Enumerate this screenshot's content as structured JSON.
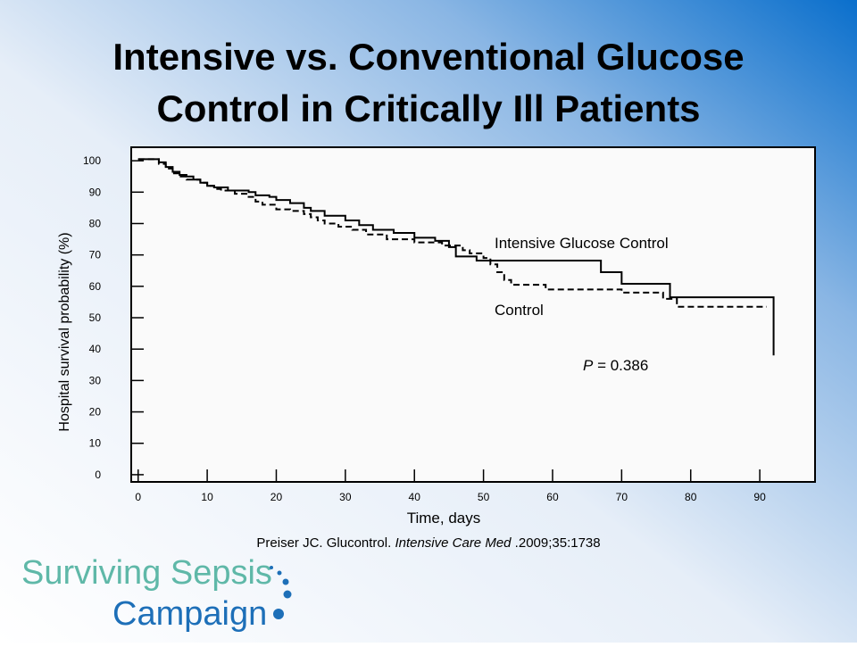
{
  "chart_data": {
    "type": "step",
    "title": [
      "Intensive vs. Conventional Glucose",
      "Control in Critically Ill Patients"
    ],
    "x_label": "Time, days",
    "y_label": "Hospital survival probability (%)",
    "xlim": [
      -1,
      98
    ],
    "ylim": [
      -2.3,
      104.3
    ],
    "xticks": [
      0,
      10,
      20,
      30,
      40,
      50,
      60,
      70,
      80,
      90
    ],
    "yticks": [
      0,
      10,
      20,
      30,
      40,
      50,
      60,
      70,
      80,
      90,
      100
    ],
    "series": [
      {
        "name": "Intensive Glucose Control",
        "color": "#000000",
        "dash": false,
        "x": [
          0,
          3,
          4,
          5,
          6,
          7,
          8,
          9,
          10,
          11,
          13,
          16,
          17,
          19,
          20,
          22,
          24,
          25,
          27,
          30,
          32,
          34,
          37,
          40,
          43,
          45,
          46,
          49,
          67,
          70,
          77,
          92
        ],
        "values": [
          100.5,
          99.5,
          98,
          96.5,
          95.5,
          95,
          94,
          93,
          92,
          91.5,
          90.5,
          90,
          89,
          88.5,
          87.5,
          86.5,
          85,
          84,
          82.5,
          81,
          79.5,
          78,
          77,
          75.5,
          74.5,
          72.5,
          69.5,
          68.2,
          64.5,
          60.8,
          56.5,
          38
        ]
      },
      {
        "name": "Control",
        "color": "#000000",
        "dash": true,
        "x": [
          0,
          3,
          4,
          5,
          6,
          7,
          9,
          10,
          11,
          12,
          14,
          16,
          17,
          18,
          20,
          22,
          24,
          25,
          26,
          27,
          29,
          31,
          33,
          36,
          40,
          44,
          47,
          48,
          50,
          51,
          52,
          53,
          54,
          59,
          70,
          76,
          78,
          91
        ],
        "values": [
          100.5,
          99,
          97.5,
          96,
          95,
          94,
          93,
          92,
          91,
          90.5,
          89.5,
          88.5,
          87,
          86,
          84.5,
          84,
          83,
          82,
          81,
          80,
          79,
          78,
          76.5,
          75,
          74,
          73,
          71.5,
          70.5,
          69,
          67,
          64.5,
          62,
          60.5,
          59,
          58,
          56,
          53.5,
          53.5
        ]
      }
    ],
    "p_value": {
      "symbol": "P",
      "text": "= 0.386"
    }
  },
  "citation": {
    "before": "Preiser JC. Glucontrol. ",
    "journal": "Intensive Care Med",
    "after": " .2009;35:1738"
  },
  "logo": {
    "line1": "Surviving Sepsis",
    "line2": "Campaign"
  }
}
